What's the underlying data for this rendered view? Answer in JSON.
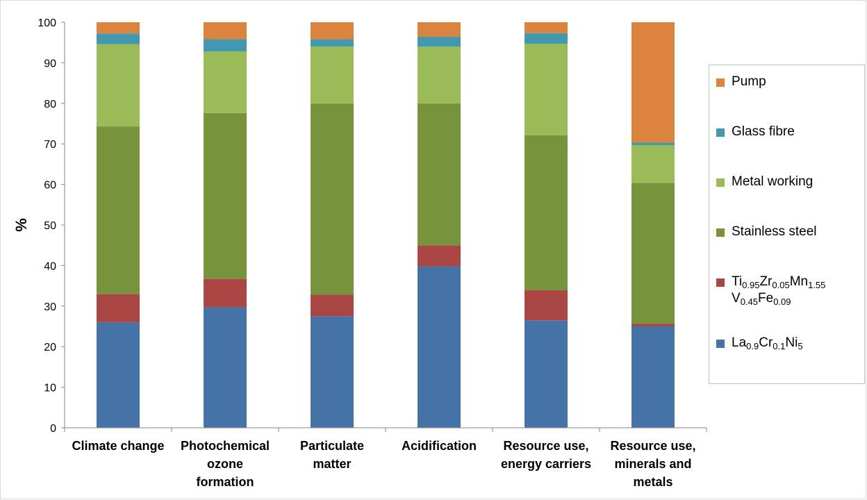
{
  "chart_data": {
    "type": "bar",
    "stacked": true,
    "ylabel": "%",
    "xlabel": "",
    "ylim": [
      0,
      100
    ],
    "yticks": [
      0,
      10,
      20,
      30,
      40,
      50,
      60,
      70,
      80,
      90,
      100
    ],
    "grid": false,
    "legend_position": "right",
    "categories": [
      [
        "Climate change"
      ],
      [
        "Photochemical",
        "ozone",
        "formation"
      ],
      [
        "Particulate",
        "matter"
      ],
      [
        "Acidification"
      ],
      [
        "Resource use,",
        "energy carriers"
      ],
      [
        "Resource use,",
        "minerals and",
        "metals"
      ]
    ],
    "series": [
      {
        "name": "La0.9Cr0.1Ni5",
        "name_parts": [
          [
            "La",
            ""
          ],
          [
            "0.9",
            "sub"
          ],
          [
            "Cr",
            ""
          ],
          [
            "0.1",
            "sub"
          ],
          [
            "Ni",
            ""
          ],
          [
            "5",
            "sub"
          ]
        ],
        "color": "#4572a7",
        "values": [
          26.0,
          29.7,
          27.5,
          39.8,
          26.5,
          25.0
        ]
      },
      {
        "name": "Ti0.95Zr0.05Mn1.55 V0.45Fe0.09",
        "name_parts": [
          [
            "Ti",
            ""
          ],
          [
            "0.95",
            "sub"
          ],
          [
            "Zr",
            ""
          ],
          [
            "0.05",
            "sub"
          ],
          [
            "Mn",
            ""
          ],
          [
            "1.55",
            "sub"
          ],
          [
            "\n",
            ""
          ],
          [
            "V",
            ""
          ],
          [
            "0.45",
            "sub"
          ],
          [
            "Fe",
            ""
          ],
          [
            "0.09",
            "sub"
          ]
        ],
        "color": "#aa4643",
        "values": [
          7.0,
          7.0,
          5.3,
          5.2,
          7.4,
          0.6
        ]
      },
      {
        "name": "Stainless steel",
        "color": "#77933c",
        "values": [
          41.3,
          40.9,
          47.2,
          35.0,
          38.2,
          34.8
        ]
      },
      {
        "name": "Metal working",
        "color": "#9bbb59",
        "values": [
          20.3,
          15.2,
          14.0,
          14.0,
          22.6,
          9.3
        ]
      },
      {
        "name": "Glass fibre",
        "color": "#4198af",
        "values": [
          2.6,
          3.0,
          1.8,
          2.4,
          2.6,
          0.6
        ]
      },
      {
        "name": "Pump",
        "color": "#db843d",
        "values": [
          2.8,
          4.2,
          4.2,
          3.6,
          2.7,
          29.7
        ]
      }
    ]
  }
}
